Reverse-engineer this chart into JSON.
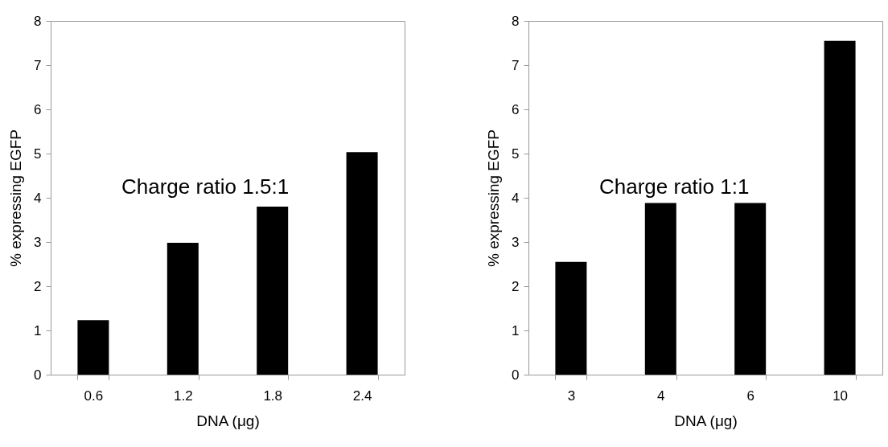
{
  "chart_data": [
    {
      "type": "bar",
      "categories": [
        "0.6",
        "1.2",
        "1.8",
        "2.4"
      ],
      "values": [
        1.23,
        2.98,
        3.8,
        5.03
      ],
      "color": "#000000",
      "xlabel": "DNA (μg)",
      "ylabel": "% expressing EGFP",
      "ylim": [
        0,
        8
      ],
      "yticks": [
        0,
        1,
        2,
        3,
        4,
        5,
        6,
        7,
        8
      ],
      "annotations": [
        "Charge ratio 1.5:1"
      ]
    },
    {
      "type": "bar",
      "categories": [
        "3",
        "4",
        "6",
        "10"
      ],
      "values": [
        2.55,
        3.88,
        3.88,
        7.55
      ],
      "color": "#000000",
      "xlabel": "DNA (μg)",
      "ylabel": "% expressing EGFP",
      "ylim": [
        0,
        8
      ],
      "yticks": [
        0,
        1,
        2,
        3,
        4,
        5,
        6,
        7,
        8
      ],
      "annotations": [
        "Charge ratio 1:1"
      ]
    }
  ]
}
